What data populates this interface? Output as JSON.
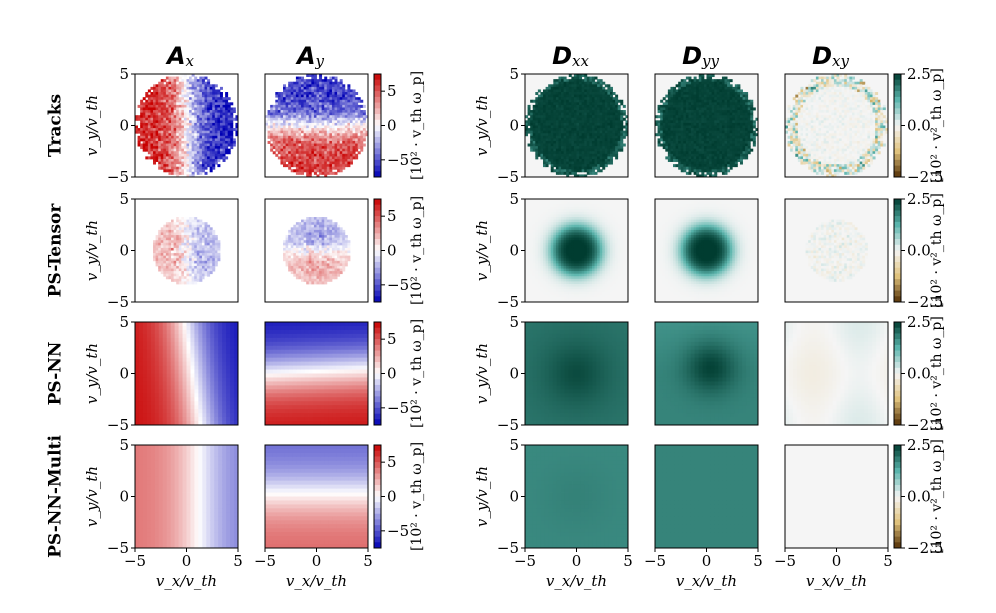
{
  "chart_data": {
    "type": "heatmap",
    "column_titles": [
      {
        "main": "A",
        "sub": "x"
      },
      {
        "main": "A",
        "sub": "y"
      },
      {
        "main": "D",
        "sub": "xx"
      },
      {
        "main": "D",
        "sub": "yy"
      },
      {
        "main": "D",
        "sub": "xy"
      }
    ],
    "row_labels": [
      "Tracks",
      "PS-Tensor",
      "PS-NN",
      "PS-NN-Multi"
    ],
    "xlabel": "v_x/v_th",
    "ylabel": "v_y/v_th",
    "x_range": [
      -5,
      5
    ],
    "y_range": [
      -5,
      5
    ],
    "x_ticks": [
      "−5",
      "0",
      "5"
    ],
    "y_ticks": [
      "−5",
      "0",
      "5"
    ],
    "colorbars": {
      "advection": {
        "label": "[10² · v_th ω_p]",
        "ticks": [
          "5",
          "0",
          "−5"
        ],
        "range": [
          -7.5,
          7.5
        ],
        "colors": [
          "#0000b4",
          "#ffffff",
          "#c80000"
        ]
      },
      "diffusion": {
        "label": "[10² · v²_th ω_p]",
        "ticks": [
          "2.5",
          "0.0",
          "−2.5"
        ],
        "range": [
          -2.5,
          2.5
        ],
        "colors": [
          "#543005",
          "#f5f5f5",
          "#003c30"
        ]
      }
    },
    "panels_description": [
      [
        "noisy binned field within |v|<5, red left / blue right",
        "noisy binned field within |v|<5, blue top / red bottom",
        "dense teal disk",
        "dense teal disk",
        "noise near zero with edge speckle"
      ],
      [
        "faint noisy field within |v|<3",
        "faint noisy field within |v|<3",
        "teal disk radius ~2.5",
        "teal disk radius ~2.5",
        "near zero"
      ],
      [
        "smooth gradient red to blue along v_x",
        "smooth gradient blue to red along v_y",
        "smooth dark teal",
        "smooth dark teal",
        "near zero"
      ],
      [
        "smooth weaker gradient along v_x",
        "smooth weaker gradient along v_y",
        "uniform teal",
        "uniform teal",
        "zero"
      ]
    ]
  }
}
